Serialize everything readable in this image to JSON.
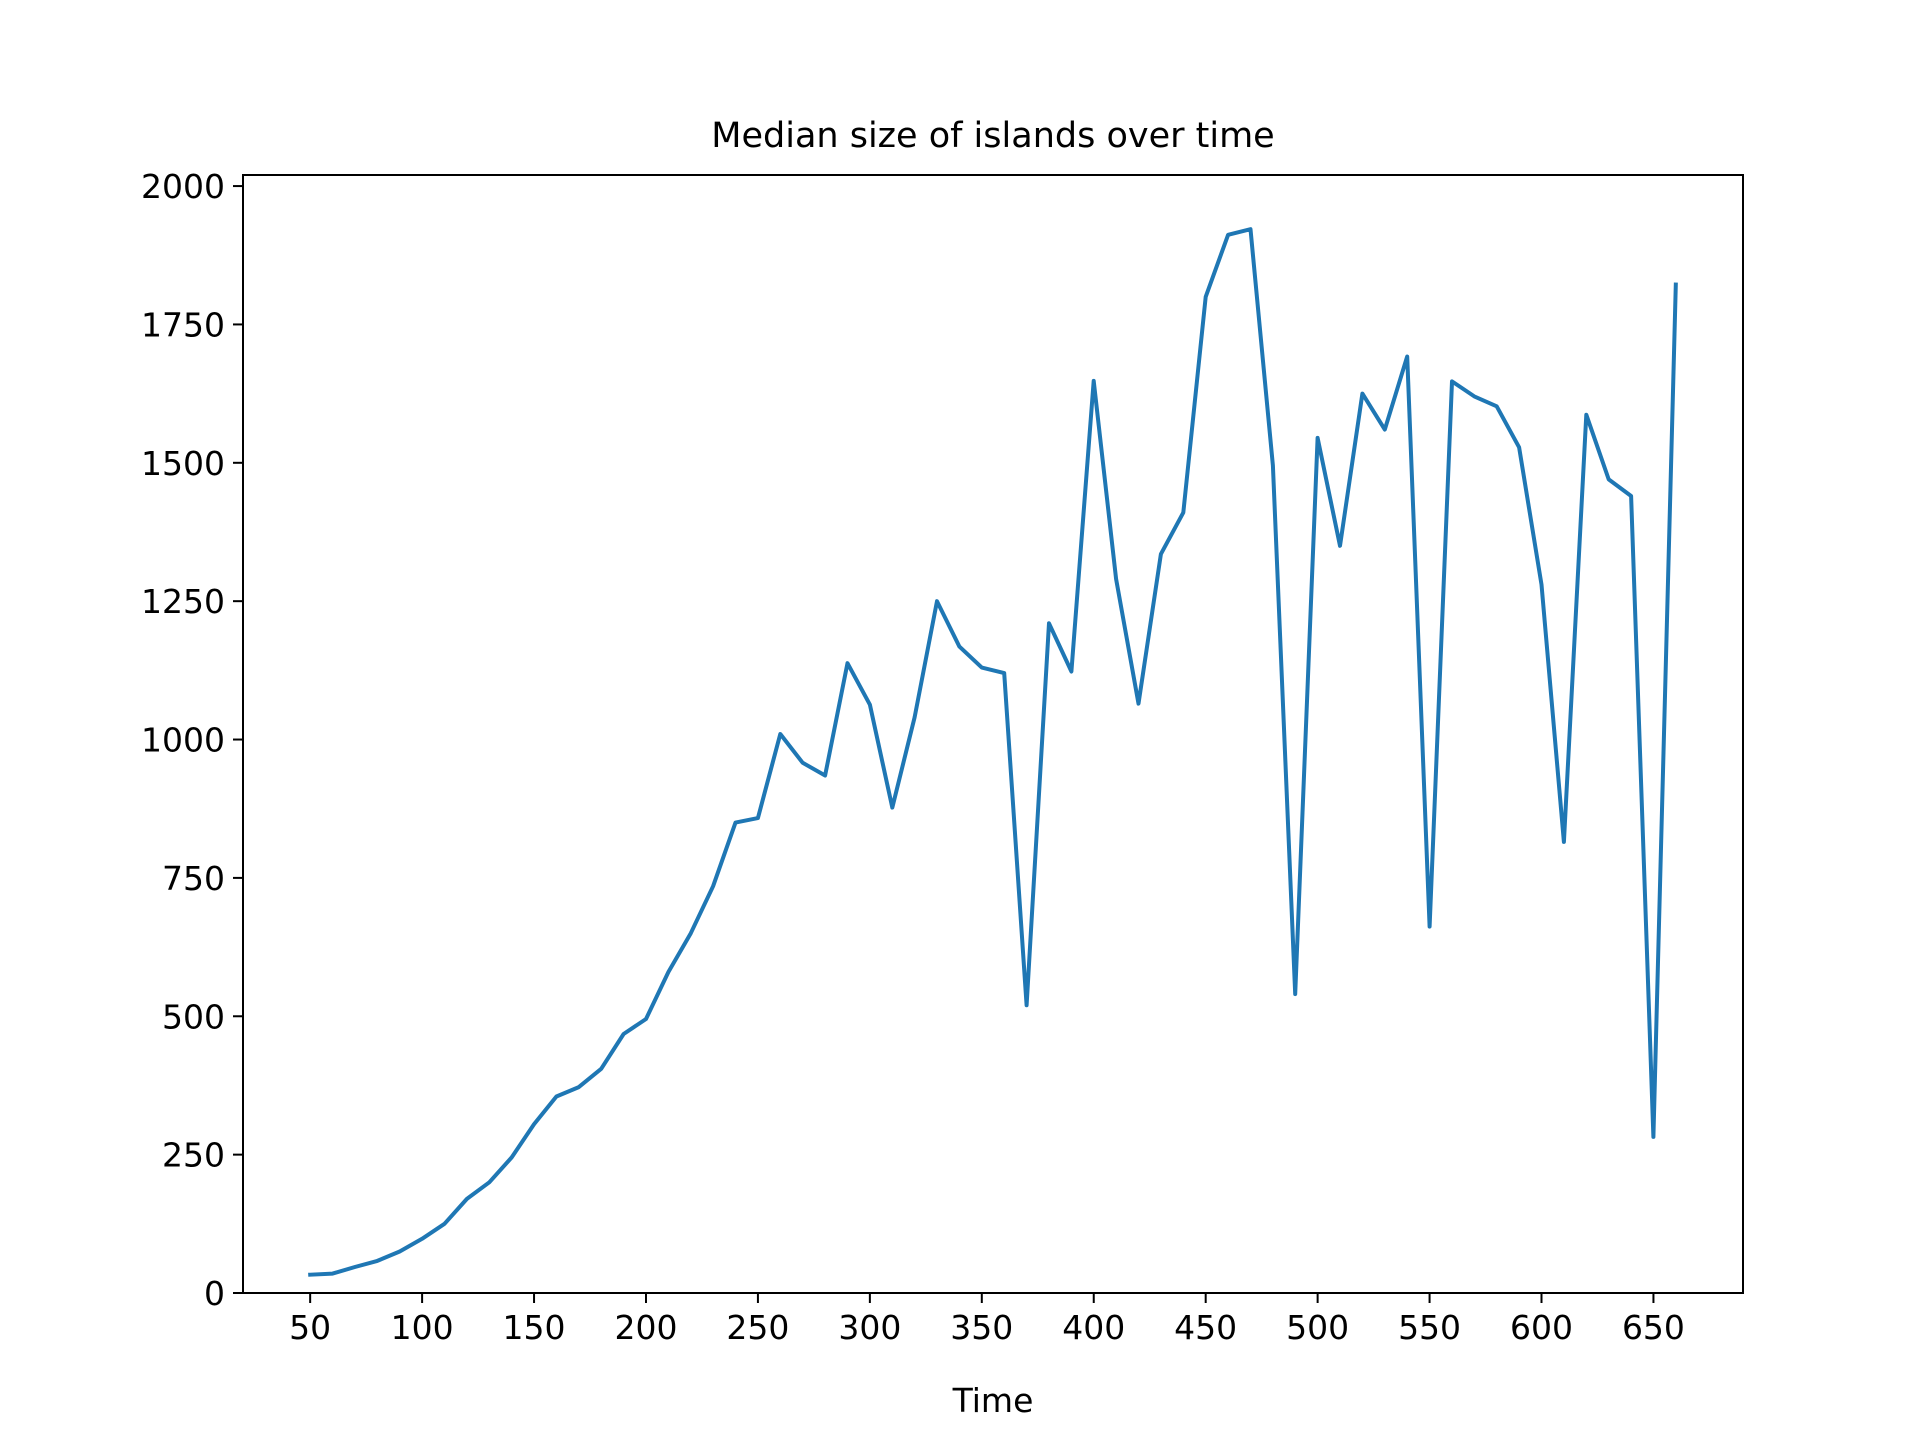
{
  "chart_data": {
    "type": "line",
    "title": "Median size of islands over time",
    "xlabel": "Time",
    "ylabel": "",
    "xlim": [
      20,
      690
    ],
    "ylim": [
      0,
      2020
    ],
    "xticks": [
      50,
      100,
      150,
      200,
      250,
      300,
      350,
      400,
      450,
      500,
      550,
      600,
      650
    ],
    "yticks": [
      0,
      250,
      500,
      750,
      1000,
      1250,
      1500,
      1750,
      2000
    ],
    "grid": false,
    "series": [
      {
        "color": "#1f77b4",
        "x": [
          50,
          60,
          70,
          80,
          90,
          100,
          110,
          120,
          130,
          140,
          150,
          160,
          170,
          180,
          190,
          200,
          210,
          220,
          230,
          240,
          250,
          260,
          270,
          280,
          290,
          300,
          310,
          320,
          330,
          340,
          350,
          360,
          370,
          380,
          390,
          400,
          410,
          420,
          430,
          440,
          450,
          460,
          470,
          480,
          490,
          500,
          510,
          520,
          530,
          540,
          550,
          560,
          570,
          580,
          590,
          600,
          610,
          620,
          630,
          640,
          650,
          660
        ],
        "values": [
          33,
          35,
          47,
          58,
          75,
          98,
          125,
          170,
          200,
          245,
          305,
          355,
          372,
          405,
          468,
          495,
          580,
          650,
          735,
          850,
          858,
          1010,
          958,
          935,
          1138,
          1063,
          877,
          1040,
          1250,
          1168,
          1130,
          1120,
          520,
          1210,
          1123,
          1648,
          1290,
          1065,
          1335,
          1410,
          1800,
          1912,
          1922,
          1495,
          540,
          1545,
          1350,
          1625,
          1560,
          1692,
          662,
          1647,
          1620,
          1602,
          1528,
          1280,
          815,
          1587,
          1470,
          1440,
          282,
          1822
        ]
      }
    ]
  }
}
